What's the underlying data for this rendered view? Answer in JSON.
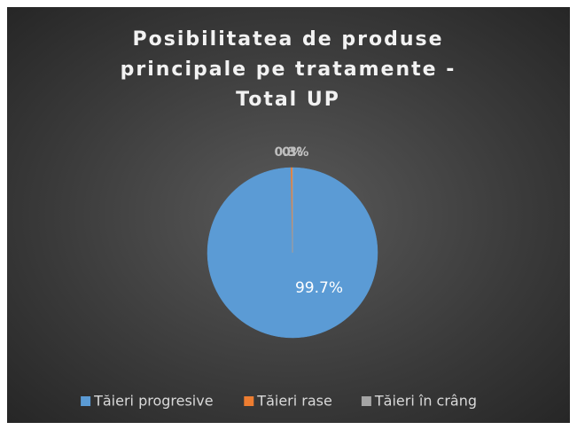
{
  "chart_data": {
    "type": "pie",
    "title": "Posibilitatea de produse principale pe tratamente - Total UP",
    "categories": [
      "Tăieri progresive",
      "Tăieri rase",
      "Tăieri în crâng"
    ],
    "values": [
      99.7,
      0.3,
      0
    ],
    "value_labels": [
      "99.7%",
      "0.3%",
      "0%"
    ],
    "colors": [
      "#5b9bd5",
      "#ed7d31",
      "#a5a5a5"
    ],
    "legend": "bottom"
  }
}
